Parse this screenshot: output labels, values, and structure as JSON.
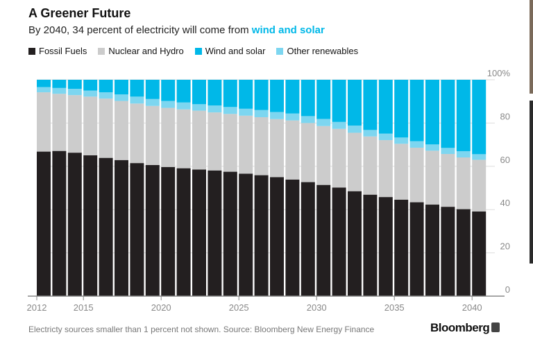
{
  "header": {
    "title": "A Greener Future",
    "subtitle_prefix": "By 2040, 34 percent of electricity will come from ",
    "subtitle_highlight": "wind and solar"
  },
  "footer": {
    "note": "Electricty sources smaller than 1 percent not shown. Source: Bloomberg New Energy Finance",
    "logo": "Bloomberg"
  },
  "chart_data": {
    "type": "bar",
    "stacked": true,
    "title": "A Greener Future",
    "subtitle": "By 2040, 34 percent of electricity will come from wind and solar",
    "legend_position": "top-left",
    "categories": [
      2012,
      2013,
      2014,
      2015,
      2016,
      2017,
      2018,
      2019,
      2020,
      2021,
      2022,
      2023,
      2024,
      2025,
      2026,
      2027,
      2028,
      2029,
      2030,
      2031,
      2032,
      2033,
      2034,
      2035,
      2036,
      2037,
      2038,
      2039,
      2040
    ],
    "x_tick_labels": [
      "2012",
      "2015",
      "2020",
      "2025",
      "2030",
      "2035",
      "2040"
    ],
    "y_tick_labels": [
      "0",
      "20",
      "40",
      "60",
      "80",
      "100%"
    ],
    "ylim": [
      0,
      100
    ],
    "y_axis_position": "right",
    "series": [
      {
        "name": "Fossil Fuels",
        "color": "#231f20",
        "values": [
          66.8,
          67.1,
          66.3,
          65.1,
          63.9,
          62.9,
          61.5,
          60.6,
          59.7,
          59.1,
          58.5,
          58.1,
          57.5,
          56.6,
          55.9,
          55.0,
          53.9,
          52.7,
          51.4,
          50.2,
          48.5,
          46.9,
          45.8,
          44.6,
          43.4,
          42.3,
          41.3,
          40.2,
          39.1
        ]
      },
      {
        "name": "Nuclear and Hydro",
        "color": "#cccccc",
        "values": [
          27.4,
          26.4,
          26.6,
          27.1,
          27.4,
          27.3,
          27.5,
          27.3,
          27.3,
          27.2,
          27.2,
          26.8,
          26.7,
          26.8,
          26.8,
          26.8,
          27.3,
          27.3,
          27.2,
          27.1,
          27.0,
          26.9,
          26.3,
          25.8,
          25.2,
          24.9,
          24.4,
          23.9,
          23.9
        ]
      },
      {
        "name": "Other renewables",
        "color": "#7dd6f0",
        "values": [
          2.4,
          2.7,
          2.9,
          2.8,
          2.9,
          3.0,
          3.2,
          3.2,
          3.2,
          3.2,
          3.0,
          3.2,
          3.2,
          3.2,
          3.3,
          3.3,
          3.2,
          3.2,
          3.3,
          3.2,
          3.3,
          3.0,
          3.0,
          2.9,
          3.0,
          2.9,
          2.8,
          2.9,
          2.6
        ]
      },
      {
        "name": "Wind and solar",
        "color": "#00b8e8",
        "values": [
          3.4,
          3.8,
          4.2,
          5.0,
          5.8,
          6.8,
          7.8,
          8.9,
          9.8,
          10.5,
          11.3,
          11.9,
          12.6,
          13.4,
          14.0,
          14.9,
          15.6,
          16.8,
          18.1,
          19.5,
          21.2,
          23.2,
          24.9,
          26.7,
          28.4,
          29.9,
          31.5,
          33.0,
          34.4
        ]
      }
    ],
    "legend_order": [
      "Fossil Fuels",
      "Nuclear and Hydro",
      "Wind and solar",
      "Other renewables"
    ]
  }
}
